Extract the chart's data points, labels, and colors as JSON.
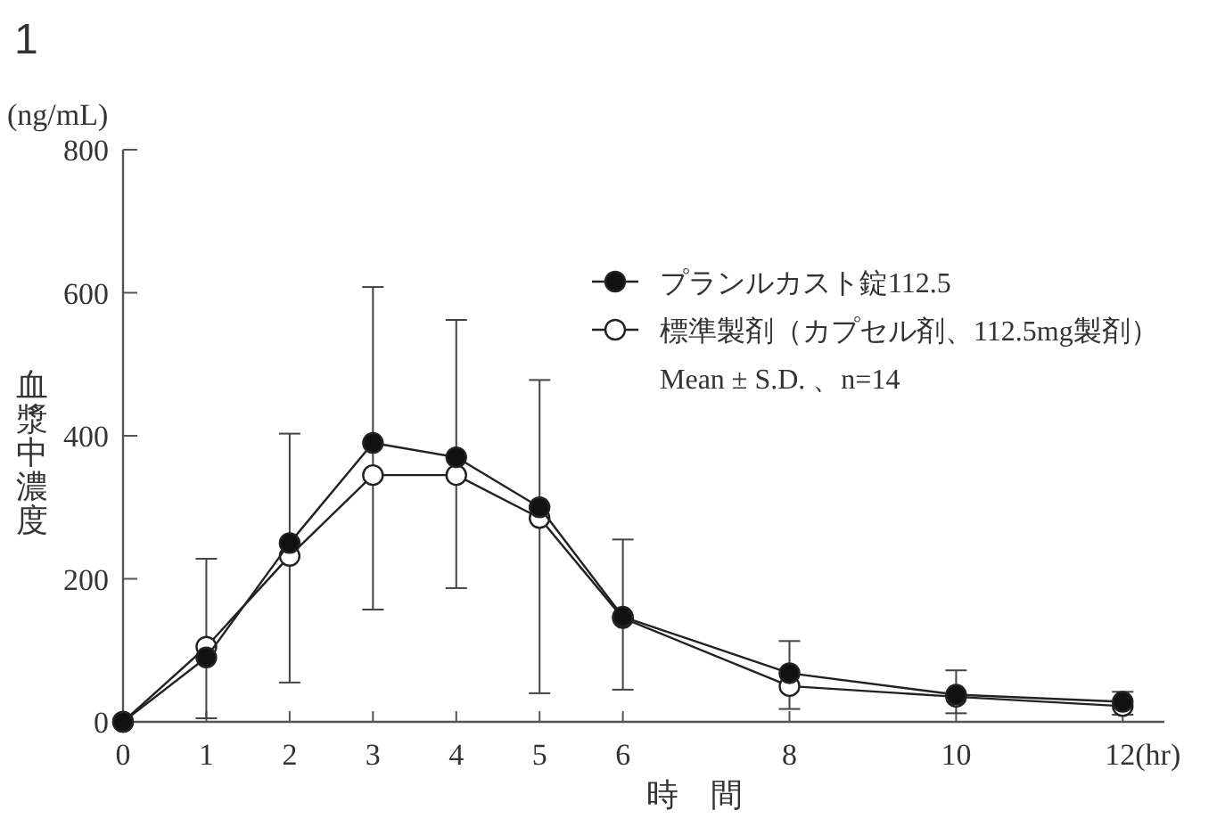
{
  "chart_data": {
    "type": "line",
    "title": "1",
    "xlabel": "時　間",
    "ylabel": "血漿中濃度",
    "annotations": [
      "(ng/mL)",
      "Mean ± S.D. 、n=14"
    ],
    "x": [
      0,
      1,
      2,
      3,
      4,
      5,
      6,
      8,
      10,
      12
    ],
    "series": [
      {
        "name": "プランルカスト錠112.5",
        "color": "#111111",
        "marker": "circle",
        "values": [
          0,
          90,
          250,
          390,
          370,
          300,
          147,
          68,
          38,
          28
        ],
        "errors": [
          null,
          [
            5,
            228
          ],
          [
            55,
            403
          ],
          [
            157,
            608
          ],
          [
            187,
            562
          ],
          [
            40,
            478
          ],
          [
            45,
            255
          ],
          [
            18,
            113
          ],
          [
            12,
            72
          ],
          [
            10,
            42
          ]
        ]
      },
      {
        "name": "標準製剤（カプセル剤、112.5mg製剤）",
        "color": "#ffffff",
        "marker": "circle",
        "values": [
          0,
          105,
          232,
          345,
          345,
          285,
          145,
          50,
          35,
          22
        ]
      }
    ],
    "xlim": [
      0,
      12.5
    ],
    "xticks": [
      0,
      1,
      2,
      3,
      4,
      5,
      6,
      8,
      10,
      {
        "value": 12,
        "label": "12(hr)"
      }
    ],
    "ylim": [
      0,
      800
    ],
    "yticks": [
      0,
      200,
      400,
      600,
      800
    ],
    "grid": false,
    "legend": "top right"
  }
}
